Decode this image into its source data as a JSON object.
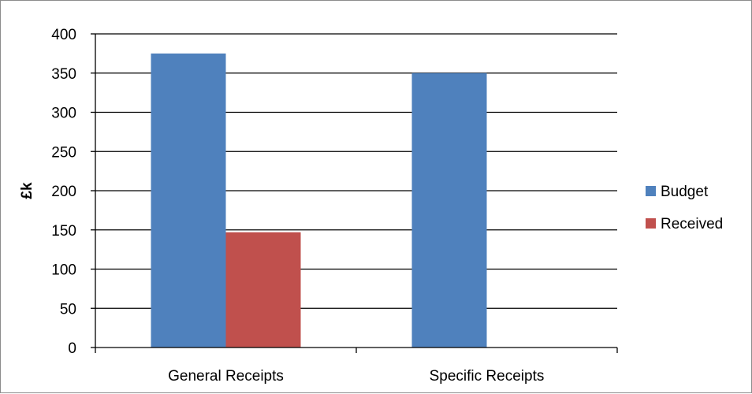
{
  "chart_data": {
    "type": "bar",
    "title": "",
    "xlabel": "",
    "ylabel": "£k",
    "categories": [
      "General Receipts",
      "Specific Receipts"
    ],
    "series": [
      {
        "name": "Budget",
        "values": [
          375,
          350
        ],
        "color": "#4f81bd"
      },
      {
        "name": "Received",
        "values": [
          147,
          0
        ],
        "color": "#c0504d"
      }
    ],
    "ylim": [
      0,
      400
    ],
    "yticks": [
      0,
      50,
      100,
      150,
      200,
      250,
      300,
      350,
      400
    ],
    "grid": true,
    "legend_position": "right"
  }
}
